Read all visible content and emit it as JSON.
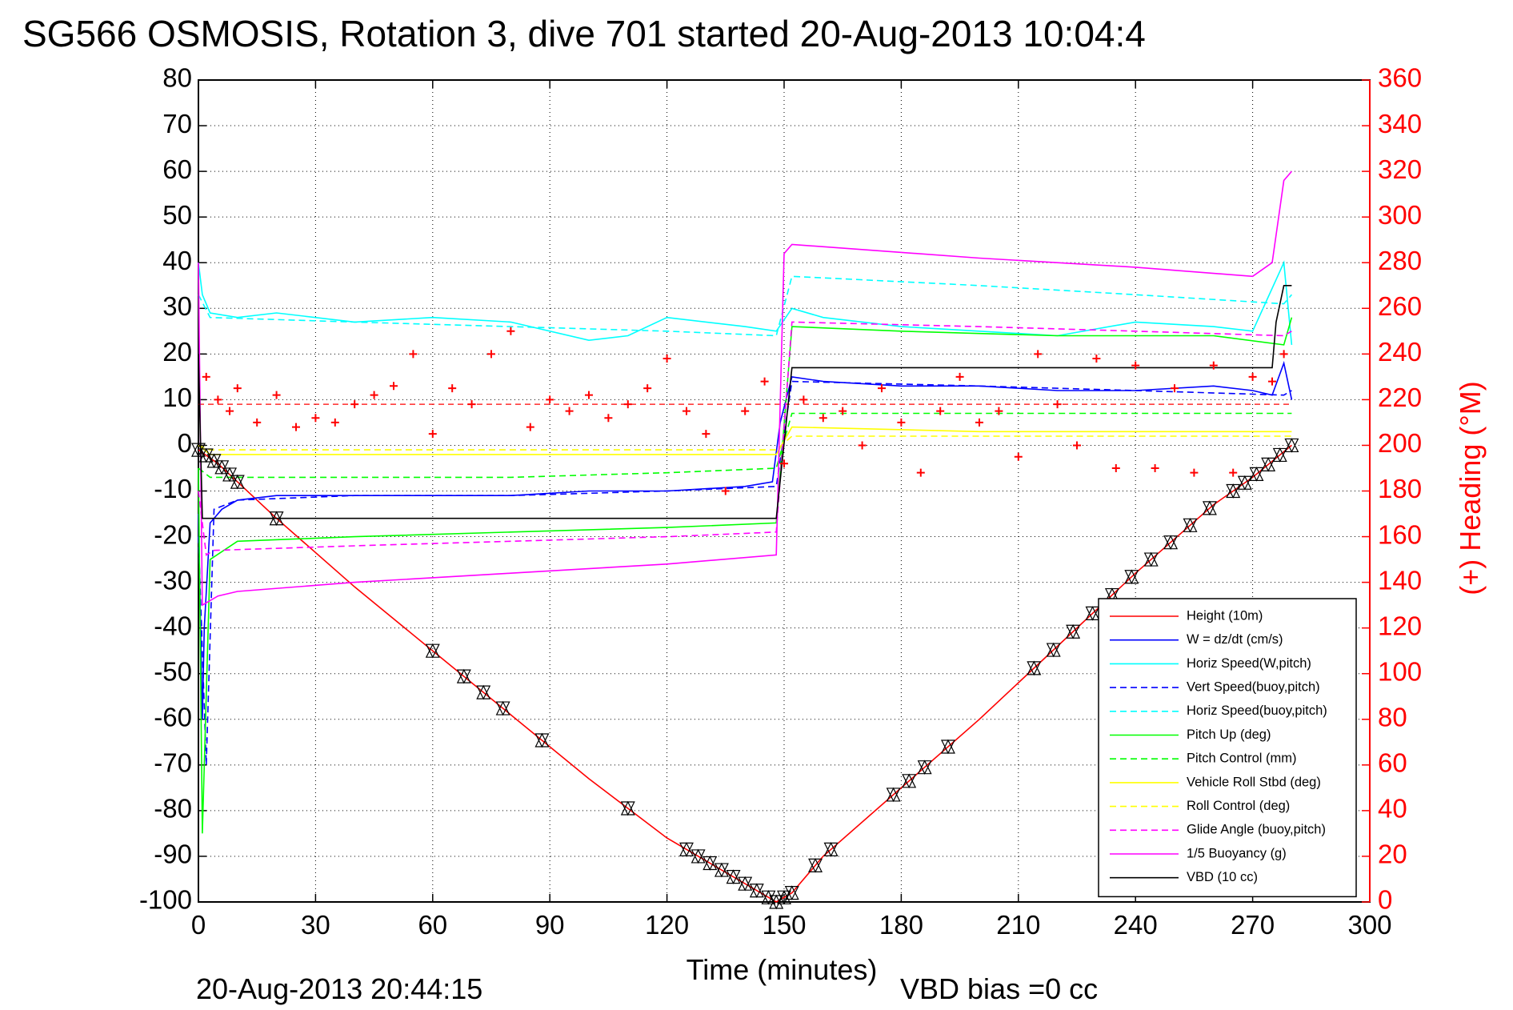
{
  "chart_data": {
    "type": "line",
    "title": "SG566 OSMOSIS, Rotation 3, dive 701 started 20-Aug-2013 10:04:4",
    "xlabel": "Time (minutes)",
    "ylabel_right": "(+) Heading (°M)",
    "footer_left": "20-Aug-2013 20:44:15",
    "footer_right": "VBD bias =0 cc",
    "xlim": [
      0,
      300
    ],
    "ylim": [
      -100,
      80
    ],
    "ylim_right": [
      0,
      360
    ],
    "x_ticks": [
      "0",
      "30",
      "60",
      "90",
      "120",
      "150",
      "180",
      "210",
      "240",
      "270",
      "300"
    ],
    "y_ticks": [
      "80",
      "70",
      "60",
      "50",
      "40",
      "30",
      "20",
      "10",
      "0",
      "-10",
      "-20",
      "-30",
      "-40",
      "-50",
      "-60",
      "-70",
      "-80",
      "-90",
      "-100"
    ],
    "y_ticks_right": [
      "360",
      "340",
      "320",
      "300",
      "280",
      "260",
      "240",
      "220",
      "200",
      "180",
      "160",
      "140",
      "120",
      "100",
      "80",
      "60",
      "40",
      "20",
      "0"
    ],
    "grid": true,
    "legend_position": "bottom-right",
    "series": [
      {
        "name": "Height (10m)",
        "color": "#ff0000",
        "style": "solid",
        "x": [
          0,
          5,
          10,
          20,
          40,
          60,
          80,
          100,
          120,
          140,
          148,
          152,
          160,
          180,
          200,
          220,
          240,
          260,
          270,
          280
        ],
        "y": [
          -1,
          -4,
          -8,
          -16,
          -31,
          -45,
          -59,
          -73,
          -86,
          -96,
          -100,
          -98,
          -90,
          -75,
          -60,
          -44,
          -28,
          -13,
          -7,
          0
        ]
      },
      {
        "name": "W = dz/dt (cm/s)",
        "color": "#0000ff",
        "style": "solid",
        "x": [
          0,
          1,
          1.5,
          3,
          6,
          10,
          20,
          40,
          60,
          80,
          100,
          120,
          140,
          147,
          149,
          152,
          160,
          180,
          200,
          220,
          240,
          260,
          270,
          275,
          278,
          280
        ],
        "y": [
          -15,
          -60,
          -40,
          -17,
          -14,
          -12,
          -11,
          -11,
          -11,
          -11,
          -10,
          -10,
          -9,
          -8,
          5,
          15,
          14,
          13,
          13,
          12,
          12,
          13,
          12,
          11,
          18,
          10
        ]
      },
      {
        "name": "Horiz Speed(W,pitch)",
        "color": "#00ffff",
        "style": "solid",
        "x": [
          0,
          1,
          3,
          10,
          20,
          40,
          60,
          80,
          100,
          110,
          120,
          140,
          148,
          152,
          160,
          180,
          200,
          220,
          240,
          260,
          270,
          278,
          280
        ],
        "y": [
          40,
          33,
          29,
          28,
          29,
          27,
          28,
          27,
          23,
          24,
          28,
          26,
          25,
          30,
          28,
          26,
          25,
          24,
          27,
          26,
          25,
          40,
          22
        ]
      },
      {
        "name": "Vert Speed(buoy,pitch)",
        "color": "#0000ff",
        "style": "dashed",
        "x": [
          0,
          2,
          4,
          10,
          40,
          80,
          120,
          148,
          152,
          200,
          240,
          278,
          280
        ],
        "y": [
          -20,
          -70,
          -14,
          -12,
          -11,
          -11,
          -10,
          -9,
          14,
          13,
          12,
          11,
          12
        ]
      },
      {
        "name": "Horiz Speed(buoy,pitch)",
        "color": "#00ffff",
        "style": "dashed",
        "x": [
          0,
          3,
          40,
          80,
          120,
          148,
          152,
          200,
          240,
          278,
          280
        ],
        "y": [
          33,
          28,
          27,
          26,
          25,
          24,
          37,
          35,
          33,
          31,
          33
        ]
      },
      {
        "name": "Pitch Up (deg)",
        "color": "#00ff00",
        "style": "solid",
        "x": [
          0,
          1,
          3,
          10,
          40,
          80,
          120,
          148,
          152,
          180,
          220,
          260,
          278,
          280
        ],
        "y": [
          -5,
          -85,
          -25,
          -21,
          -20,
          -19,
          -18,
          -17,
          26,
          25,
          24,
          24,
          22,
          28
        ]
      },
      {
        "name": "Pitch Control (mm)",
        "color": "#00ff00",
        "style": "dashed",
        "x": [
          0,
          3,
          40,
          80,
          120,
          148,
          152,
          200,
          240,
          280
        ],
        "y": [
          -5,
          -7,
          -7,
          -7,
          -6,
          -5,
          7,
          7,
          7,
          7
        ]
      },
      {
        "name": "Vehicle Roll Stbd (deg)",
        "color": "#ffff00",
        "style": "solid",
        "x": [
          0,
          3,
          40,
          80,
          120,
          148,
          152,
          200,
          240,
          280
        ],
        "y": [
          0,
          -2,
          -2,
          -2,
          -2,
          -2,
          4,
          3,
          3,
          3
        ]
      },
      {
        "name": "Roll Control (deg)",
        "color": "#ffff00",
        "style": "dashed",
        "x": [
          0,
          3,
          40,
          80,
          120,
          148,
          152,
          200,
          240,
          280
        ],
        "y": [
          0,
          -1,
          -1,
          -1,
          -1,
          -1,
          2,
          2,
          2,
          2
        ]
      },
      {
        "name": "Glide Angle (buoy,pitch)",
        "color": "#ff00ff",
        "style": "dashed",
        "x": [
          0,
          2,
          4,
          40,
          80,
          120,
          148,
          152,
          200,
          240,
          278,
          280
        ],
        "y": [
          -10,
          -24,
          -23,
          -22,
          -21,
          -20,
          -19,
          27,
          26,
          25,
          24,
          25
        ]
      },
      {
        "name": "1/5 Buoyancy (g)",
        "color": "#ff00ff",
        "style": "solid",
        "x": [
          0,
          1,
          3,
          5,
          10,
          40,
          80,
          120,
          148,
          150,
          152,
          200,
          240,
          270,
          275,
          278,
          280
        ],
        "y": [
          40,
          -35,
          -34,
          -33,
          -32,
          -30,
          -28,
          -26,
          -24,
          42,
          44,
          41,
          39,
          37,
          40,
          58,
          60
        ]
      },
      {
        "name": "VBD (10 cc)",
        "color": "#000000",
        "style": "solid",
        "x": [
          0,
          1,
          148,
          152,
          275,
          276,
          278,
          280
        ],
        "y": [
          20,
          -16,
          -16,
          17,
          17,
          27,
          35,
          35
        ]
      },
      {
        "name": "Heading",
        "color": "#ff0000",
        "style": "markers",
        "axis": "right",
        "x": [
          2,
          5,
          8,
          10,
          15,
          20,
          25,
          30,
          35,
          40,
          45,
          50,
          55,
          60,
          65,
          70,
          75,
          80,
          85,
          90,
          95,
          100,
          105,
          110,
          115,
          120,
          125,
          130,
          135,
          140,
          145,
          150,
          155,
          160,
          165,
          170,
          175,
          180,
          185,
          190,
          195,
          200,
          205,
          210,
          215,
          220,
          225,
          230,
          235,
          240,
          245,
          250,
          255,
          260,
          265,
          270,
          275,
          278
        ],
        "y": [
          230,
          220,
          215,
          225,
          210,
          222,
          208,
          212,
          210,
          218,
          222,
          226,
          240,
          205,
          225,
          218,
          240,
          250,
          208,
          220,
          215,
          222,
          212,
          218,
          225,
          238,
          215,
          205,
          180,
          215,
          228,
          192,
          220,
          212,
          215,
          200,
          225,
          210,
          188,
          215,
          230,
          210,
          215,
          195,
          240,
          218,
          200,
          238,
          190,
          235,
          190,
          225,
          188,
          235,
          188,
          230,
          228,
          240
        ]
      }
    ],
    "reference_line": {
      "name": "",
      "color": "#ff0000",
      "style": "dashed",
      "axis": "right",
      "y": 218
    }
  }
}
